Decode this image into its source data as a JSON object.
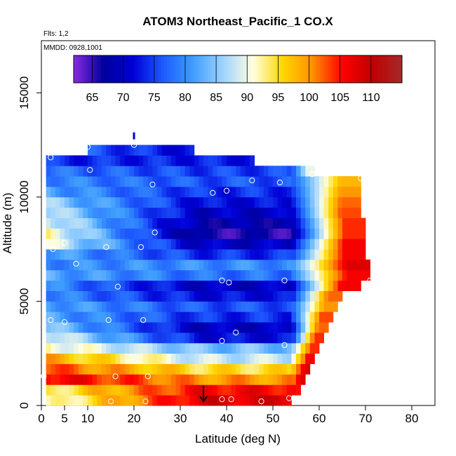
{
  "chart_data": {
    "type": "heatmap",
    "title": "ATOM3 Northeast_Pacific_1 CO.X",
    "annotations": [
      "Flts: 1,2",
      "MMDD: 0928,1001"
    ],
    "xlabel": "Latitude (deg N)",
    "ylabel": "Altitude (m)",
    "xlim": [
      0,
      85
    ],
    "ylim": [
      0,
      17500
    ],
    "x_ticks": [
      0,
      5,
      10,
      20,
      30,
      40,
      50,
      60,
      70,
      80
    ],
    "x_tick_labels": [
      "0",
      "5",
      "10",
      "20",
      "30",
      "40",
      "50",
      "60",
      "70",
      "80"
    ],
    "y_ticks": [
      0,
      5000,
      10000,
      15000
    ],
    "y_tick_labels": [
      "0",
      "5000",
      "10000",
      "15000"
    ],
    "colorbar": {
      "min": 62,
      "max": 115,
      "ticks": [
        65,
        70,
        75,
        80,
        85,
        90,
        95,
        100,
        105,
        110
      ],
      "tick_labels": [
        "65",
        "70",
        "75",
        "80",
        "85",
        "90",
        "95",
        "100",
        "105",
        "110"
      ],
      "colors": [
        "#8a2be2",
        "#00009c",
        "#0000d6",
        "#1e5bff",
        "#3f9dff",
        "#9ed3ff",
        "#ffffe0",
        "#ffd700",
        "#ff9000",
        "#ff0000",
        "#c00000",
        "#a52a2a"
      ]
    },
    "lat_break": 54,
    "rows": [
      {
        "alt0": 0,
        "alt1": 500,
        "x0": 1,
        "x1": 54,
        "left": 90,
        "mid": 108,
        "right": 107
      },
      {
        "alt0": 500,
        "alt1": 1000,
        "x0": 1,
        "x1": 56,
        "left": 93,
        "mid": 106,
        "right": 105
      },
      {
        "alt0": 1000,
        "alt1": 1500,
        "x0": 1,
        "x1": 57,
        "left": 107,
        "mid": 100,
        "right": 108
      },
      {
        "alt0": 1500,
        "alt1": 2000,
        "x0": 1,
        "x1": 58,
        "left": 103,
        "mid": 95,
        "right": 108
      },
      {
        "alt0": 2000,
        "alt1": 2500,
        "x0": 1,
        "x1": 59,
        "left": 99,
        "mid": 88,
        "right": 106
      },
      {
        "alt0": 2500,
        "alt1": 3000,
        "x0": 1,
        "x1": 60,
        "left": 92,
        "mid": 84,
        "right": 104
      },
      {
        "alt0": 3000,
        "alt1": 3500,
        "x0": 1,
        "x1": 61,
        "left": 90,
        "mid": 72,
        "right": 104
      },
      {
        "alt0": 3500,
        "alt1": 4000,
        "x0": 1,
        "x1": 62,
        "left": 85,
        "mid": 70,
        "right": 102
      },
      {
        "alt0": 4000,
        "alt1": 4500,
        "x0": 1,
        "x1": 63,
        "left": 82,
        "mid": 74,
        "right": 103
      },
      {
        "alt0": 4500,
        "alt1": 5000,
        "x0": 1,
        "x1": 64,
        "left": 82,
        "mid": 76,
        "right": 100
      },
      {
        "alt0": 5000,
        "alt1": 5500,
        "x0": 1,
        "x1": 65,
        "left": 80,
        "mid": 72,
        "right": 102
      },
      {
        "alt0": 5500,
        "alt1": 6000,
        "x0": 1,
        "x1": 69,
        "left": 80,
        "mid": 70,
        "right": 106
      },
      {
        "alt0": 6000,
        "alt1": 6500,
        "x0": 1,
        "x1": 71,
        "left": 82,
        "mid": 78,
        "right": 106
      },
      {
        "alt0": 6500,
        "alt1": 7000,
        "x0": 1,
        "x1": 71,
        "left": 80,
        "mid": 80,
        "right": 108
      },
      {
        "alt0": 7000,
        "alt1": 7500,
        "x0": 1,
        "x1": 70,
        "left": 82,
        "mid": 74,
        "right": 106
      },
      {
        "alt0": 7500,
        "alt1": 8000,
        "x0": 1,
        "x1": 70,
        "left": 90,
        "mid": 70,
        "right": 106
      },
      {
        "alt0": 8000,
        "alt1": 8500,
        "x0": 1,
        "x1": 70,
        "left": 92,
        "mid": 66,
        "right": 104
      },
      {
        "alt0": 8500,
        "alt1": 9000,
        "x0": 1,
        "x1": 70,
        "left": 90,
        "mid": 68,
        "right": 104
      },
      {
        "alt0": 9000,
        "alt1": 9500,
        "x0": 1,
        "x1": 69,
        "left": 88,
        "mid": 70,
        "right": 103
      },
      {
        "alt0": 9500,
        "alt1": 10000,
        "x0": 1,
        "x1": 69,
        "left": 86,
        "mid": 72,
        "right": 102
      },
      {
        "alt0": 10000,
        "alt1": 10500,
        "x0": 1,
        "x1": 69,
        "left": 82,
        "mid": 74,
        "right": 100
      },
      {
        "alt0": 10500,
        "alt1": 11000,
        "x0": 1,
        "x1": 69,
        "left": 80,
        "mid": 76,
        "right": 98
      },
      {
        "alt0": 11000,
        "alt1": 11500,
        "x0": 1,
        "x1": 59,
        "left": 78,
        "mid": 75,
        "right": 90
      },
      {
        "alt0": 11500,
        "alt1": 12000,
        "x0": 1,
        "x1": 46,
        "left": 74,
        "mid": 73,
        "right": 80
      },
      {
        "alt0": 12000,
        "alt1": 12500,
        "x0": 10,
        "x1": 33,
        "left": 76,
        "mid": 71,
        "right": 72
      }
    ],
    "points": [
      [
        15,
        200
      ],
      [
        22.5,
        200
      ],
      [
        39,
        300
      ],
      [
        41,
        300
      ],
      [
        47.5,
        200
      ],
      [
        53.5,
        350
      ],
      [
        16,
        1400
      ],
      [
        23,
        1400
      ],
      [
        0.5,
        1400
      ],
      [
        52.5,
        2900
      ],
      [
        42,
        3500
      ],
      [
        39,
        3100
      ],
      [
        2,
        4100
      ],
      [
        5,
        4000
      ],
      [
        14.5,
        4100
      ],
      [
        22,
        4100
      ],
      [
        16.5,
        5700
      ],
      [
        39,
        6000
      ],
      [
        40.5,
        5900
      ],
      [
        52.5,
        6000
      ],
      [
        71,
        6000
      ],
      [
        7.5,
        6800
      ],
      [
        2.5,
        7500
      ],
      [
        14,
        7600
      ],
      [
        21.5,
        7600
      ],
      [
        24.5,
        8300
      ],
      [
        5,
        7800
      ],
      [
        24,
        10600
      ],
      [
        37,
        10200
      ],
      [
        40,
        10300
      ],
      [
        45.5,
        10800
      ],
      [
        51.5,
        10700
      ],
      [
        58.5,
        11100
      ],
      [
        69,
        10900
      ],
      [
        10.5,
        11300
      ],
      [
        2,
        11900
      ],
      [
        10,
        12400
      ],
      [
        20,
        12500
      ]
    ],
    "markers": [
      {
        "x": 35,
        "y": 200,
        "label": "down-arrow"
      },
      {
        "x": 20,
        "y": 12900,
        "label": "flag"
      }
    ]
  }
}
